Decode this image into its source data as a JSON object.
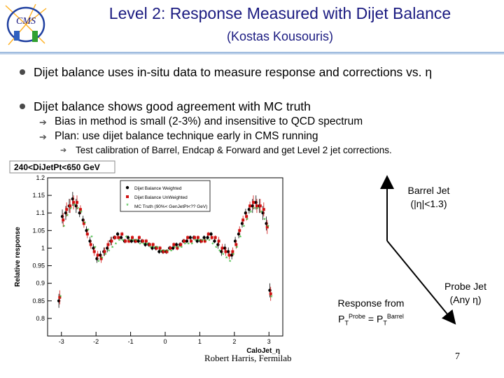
{
  "header": {
    "title": "Level 2: Response Measured with Dijet Balance",
    "subtitle": "(Kostas Kousouris)",
    "logo_text": "CMS"
  },
  "bullets": [
    {
      "text": "Dijet balance uses in-situ data to measure response and corrections vs. η"
    },
    {
      "text": "Dijet balance shows good agreement with MC truth",
      "sub": [
        "Bias in method is small (2-3%) and insensitive to QCD spectrum",
        "Plan: use dijet balance technique early in CMS running"
      ],
      "subsub": "Test calibration of Barrel, Endcap & Forward and get Level 2 jet corrections."
    }
  ],
  "chart_data": {
    "type": "scatter",
    "title": "240<DiJetPt<650 GeV",
    "xlabel": "CaloJet_η",
    "ylabel": "Relative response",
    "xlim": [
      -3.4,
      3.4
    ],
    "ylim": [
      0.75,
      1.2
    ],
    "xticks": [
      -3,
      -2,
      -1,
      0,
      1,
      2,
      3
    ],
    "yticks": [
      0.8,
      0.85,
      0.9,
      0.95,
      1,
      1.05,
      1.1,
      1.15,
      1.2
    ],
    "legend_placement": "top-right",
    "series": [
      {
        "name": "Dijet Balance Weighted",
        "color": "#000000",
        "marker": "circle",
        "x": [
          -3.05,
          -2.95,
          -2.85,
          -2.75,
          -2.65,
          -2.55,
          -2.45,
          -2.35,
          -2.25,
          -2.15,
          -2.05,
          -1.95,
          -1.85,
          -1.75,
          -1.65,
          -1.55,
          -1.45,
          -1.35,
          -1.25,
          -1.15,
          -1.05,
          -0.95,
          -0.85,
          -0.75,
          -0.65,
          -0.55,
          -0.45,
          -0.35,
          -0.25,
          -0.15,
          -0.05,
          0.05,
          0.15,
          0.25,
          0.35,
          0.45,
          0.55,
          0.65,
          0.75,
          0.85,
          0.95,
          1.05,
          1.15,
          1.25,
          1.35,
          1.45,
          1.55,
          1.65,
          1.75,
          1.85,
          1.95,
          2.05,
          2.15,
          2.25,
          2.35,
          2.45,
          2.55,
          2.65,
          2.75,
          2.85,
          2.95,
          3.05
        ],
        "y": [
          0.85,
          1.09,
          1.1,
          1.12,
          1.14,
          1.12,
          1.1,
          1.08,
          1.05,
          1.02,
          1.0,
          0.97,
          0.98,
          0.99,
          1.0,
          1.02,
          1.03,
          1.04,
          1.03,
          1.02,
          1.03,
          1.02,
          1.02,
          1.02,
          1.02,
          1.01,
          1.01,
          1.0,
          1.0,
          0.99,
          0.99,
          0.99,
          1.0,
          1.0,
          1.01,
          1.01,
          1.02,
          1.02,
          1.03,
          1.03,
          1.02,
          1.02,
          1.03,
          1.03,
          1.04,
          1.02,
          1.01,
          0.99,
          1.0,
          0.99,
          0.98,
          1.02,
          1.04,
          1.07,
          1.1,
          1.11,
          1.12,
          1.13,
          1.12,
          1.1,
          1.07,
          0.88
        ]
      },
      {
        "name": "Dijet Balance UnWeighted",
        "color": "#d01010",
        "marker": "square",
        "x": [
          -3.05,
          -2.95,
          -2.85,
          -2.75,
          -2.65,
          -2.55,
          -2.45,
          -2.35,
          -2.25,
          -2.15,
          -2.05,
          -1.95,
          -1.85,
          -1.75,
          -1.65,
          -1.55,
          -1.45,
          -1.35,
          -1.25,
          -1.15,
          -1.05,
          -0.95,
          -0.85,
          -0.75,
          -0.65,
          -0.55,
          -0.45,
          -0.35,
          -0.25,
          -0.15,
          -0.05,
          0.05,
          0.15,
          0.25,
          0.35,
          0.45,
          0.55,
          0.65,
          0.75,
          0.85,
          0.95,
          1.05,
          1.15,
          1.25,
          1.35,
          1.45,
          1.55,
          1.65,
          1.75,
          1.85,
          1.95,
          2.05,
          2.15,
          2.25,
          2.35,
          2.45,
          2.55,
          2.65,
          2.75,
          2.85,
          2.95,
          3.05
        ],
        "y": [
          0.86,
          1.08,
          1.11,
          1.12,
          1.13,
          1.13,
          1.11,
          1.07,
          1.04,
          1.01,
          0.99,
          0.98,
          0.97,
          0.99,
          1.01,
          1.02,
          1.03,
          1.03,
          1.04,
          1.02,
          1.02,
          1.03,
          1.02,
          1.03,
          1.02,
          1.02,
          1.01,
          1.01,
          1.0,
          1.0,
          0.99,
          0.99,
          1.0,
          1.01,
          1.0,
          1.01,
          1.02,
          1.03,
          1.02,
          1.03,
          1.03,
          1.02,
          1.02,
          1.04,
          1.03,
          1.03,
          1.02,
          1.0,
          0.99,
          0.98,
          0.99,
          1.01,
          1.05,
          1.08,
          1.09,
          1.12,
          1.13,
          1.12,
          1.12,
          1.11,
          1.06,
          0.87
        ]
      },
      {
        "name": "MC Truth (90%< GenJetPt<?? GeV)",
        "color": "#20b020",
        "marker": "star",
        "x": [
          -3.05,
          -2.95,
          -2.85,
          -2.75,
          -2.65,
          -2.55,
          -2.45,
          -2.35,
          -2.25,
          -2.15,
          -2.05,
          -1.95,
          -1.85,
          -1.75,
          -1.65,
          -1.55,
          -1.45,
          -1.35,
          -1.25,
          -1.15,
          -1.05,
          -0.95,
          -0.85,
          -0.75,
          -0.65,
          -0.55,
          -0.45,
          -0.35,
          -0.25,
          -0.15,
          -0.05,
          0.05,
          0.15,
          0.25,
          0.35,
          0.45,
          0.55,
          0.65,
          0.75,
          0.85,
          0.95,
          1.05,
          1.15,
          1.25,
          1.35,
          1.45,
          1.55,
          1.65,
          1.75,
          1.85,
          1.95,
          2.05,
          2.15,
          2.25,
          2.35,
          2.45,
          2.55,
          2.65,
          2.75,
          2.85,
          2.95,
          3.05
        ],
        "y": [
          0.86,
          1.06,
          1.09,
          1.11,
          1.12,
          1.11,
          1.1,
          1.07,
          1.05,
          1.03,
          1.0,
          0.96,
          0.97,
          0.98,
          0.99,
          1.0,
          1.01,
          1.02,
          1.02,
          1.03,
          1.02,
          1.02,
          1.02,
          1.01,
          1.01,
          1.01,
          1.0,
          1.0,
          1.0,
          0.99,
          0.99,
          0.99,
          0.99,
          1.0,
          1.0,
          1.0,
          1.01,
          1.01,
          1.01,
          1.02,
          1.02,
          1.02,
          1.02,
          1.02,
          1.01,
          1.0,
          0.99,
          0.98,
          0.97,
          0.96,
          0.98,
          1.0,
          1.03,
          1.06,
          1.08,
          1.1,
          1.11,
          1.11,
          1.1,
          1.08,
          1.06,
          0.86
        ]
      }
    ]
  },
  "diagram": {
    "barrel_label": "Barrel Jet",
    "barrel_eta": "(|η|<1.3)",
    "probe_label": "Probe Jet",
    "probe_eta": "(Any η)",
    "response_label": "Response from",
    "formula_pt1": "P",
    "formula_sub1": "T",
    "formula_sup1": "Probe",
    "formula_eq": " = ",
    "formula_pt2": "P",
    "formula_sub2": "T",
    "formula_sup2": "Barrel"
  },
  "footer": {
    "author": "Robert Harris, Fermilab",
    "page": "7"
  }
}
